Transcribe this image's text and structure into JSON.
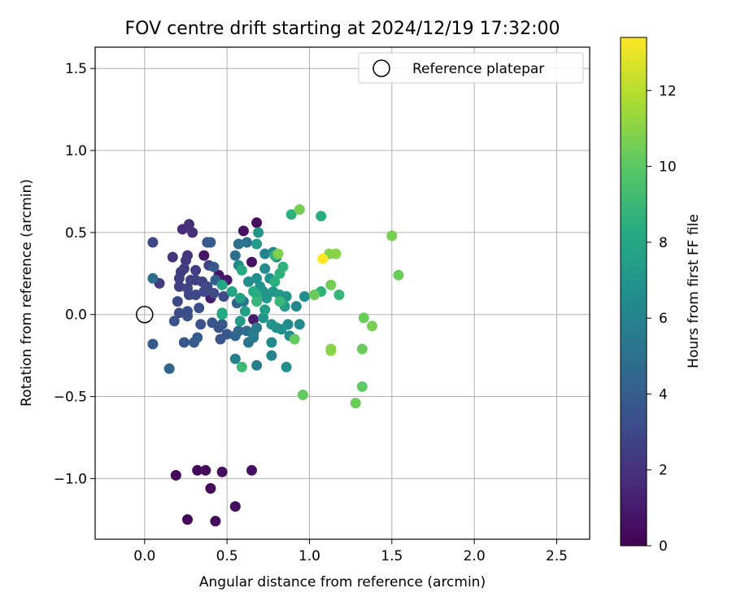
{
  "chart_data": {
    "type": "scatter",
    "title": "FOV centre drift starting at 2024/12/19 17:32:00",
    "xlabel": "Angular distance from reference (arcmin)",
    "ylabel": "Rotation from reference (arcmin)",
    "xlim": [
      -0.3,
      2.7
    ],
    "ylim": [
      -1.37,
      1.63
    ],
    "x_ticks": [
      0.0,
      0.5,
      1.0,
      1.5,
      2.0,
      2.5
    ],
    "x_tick_labels": [
      "0.0",
      "0.5",
      "1.0",
      "1.5",
      "2.0",
      "2.5"
    ],
    "y_ticks": [
      -1.0,
      -0.5,
      0.0,
      0.5,
      1.0,
      1.5
    ],
    "y_tick_labels": [
      "−1.0",
      "−0.5",
      "0.0",
      "0.5",
      "1.0",
      "1.5"
    ],
    "grid": true,
    "colormap": "viridis",
    "colorbar": {
      "label": "Hours from first FF file",
      "range": [
        0,
        13.4
      ],
      "ticks": [
        0,
        2,
        4,
        6,
        8,
        10,
        12
      ],
      "tick_labels": [
        "0",
        "2",
        "4",
        "6",
        "8",
        "10",
        "12"
      ]
    },
    "reference_marker": {
      "x": 0.0,
      "y": 0.0,
      "label": "Reference platepar",
      "style": "hollow-circle"
    },
    "legend": {
      "position": "top-right",
      "entries": [
        "Reference platepar"
      ]
    },
    "points": [
      {
        "x": 0.19,
        "y": -0.98,
        "c": 0.2
      },
      {
        "x": 0.32,
        "y": -0.95,
        "c": 0.3
      },
      {
        "x": 0.37,
        "y": -0.95,
        "c": 0.4
      },
      {
        "x": 0.47,
        "y": -0.96,
        "c": 0.5
      },
      {
        "x": 0.65,
        "y": -0.95,
        "c": 0.6
      },
      {
        "x": 0.4,
        "y": -1.06,
        "c": 0.3
      },
      {
        "x": 0.26,
        "y": -1.25,
        "c": 0.2
      },
      {
        "x": 0.43,
        "y": -1.26,
        "c": 0.3
      },
      {
        "x": 0.55,
        "y": -1.17,
        "c": 0.4
      },
      {
        "x": 0.68,
        "y": 0.56,
        "c": 0.5
      },
      {
        "x": 0.6,
        "y": 0.51,
        "c": 0.6
      },
      {
        "x": 0.65,
        "y": 0.32,
        "c": 0.7
      },
      {
        "x": 0.36,
        "y": 0.36,
        "c": 0.8
      },
      {
        "x": 0.5,
        "y": 0.21,
        "c": 0.9
      },
      {
        "x": 0.45,
        "y": 0.24,
        "c": 0.9
      },
      {
        "x": 0.4,
        "y": 0.1,
        "c": 1.0
      },
      {
        "x": 0.66,
        "y": -0.03,
        "c": 1.0
      },
      {
        "x": 0.23,
        "y": 0.52,
        "c": 1.7
      },
      {
        "x": 0.27,
        "y": 0.55,
        "c": 1.8
      },
      {
        "x": 0.29,
        "y": 0.5,
        "c": 1.9
      },
      {
        "x": 0.26,
        "y": 0.36,
        "c": 2.0
      },
      {
        "x": 0.17,
        "y": 0.35,
        "c": 2.1
      },
      {
        "x": 0.25,
        "y": 0.33,
        "c": 2.2
      },
      {
        "x": 0.22,
        "y": 0.26,
        "c": 2.3
      },
      {
        "x": 0.24,
        "y": 0.28,
        "c": 2.3
      },
      {
        "x": 0.31,
        "y": 0.27,
        "c": 2.4
      },
      {
        "x": 0.09,
        "y": 0.19,
        "c": 2.4
      },
      {
        "x": 0.21,
        "y": 0.22,
        "c": 2.5
      },
      {
        "x": 0.28,
        "y": 0.21,
        "c": 2.5
      },
      {
        "x": 0.31,
        "y": 0.21,
        "c": 2.6
      },
      {
        "x": 0.21,
        "y": 0.17,
        "c": 2.6
      },
      {
        "x": 0.26,
        "y": 0.16,
        "c": 2.7
      },
      {
        "x": 0.35,
        "y": 0.2,
        "c": 2.7
      },
      {
        "x": 0.39,
        "y": 0.3,
        "c": 2.8
      },
      {
        "x": 0.27,
        "y": 0.12,
        "c": 2.8
      },
      {
        "x": 0.31,
        "y": 0.12,
        "c": 2.9
      },
      {
        "x": 0.2,
        "y": 0.08,
        "c": 2.9
      },
      {
        "x": 0.36,
        "y": 0.14,
        "c": 3.0
      },
      {
        "x": 0.38,
        "y": 0.17,
        "c": 3.0
      },
      {
        "x": 0.42,
        "y": 0.13,
        "c": 3.1
      },
      {
        "x": 0.48,
        "y": 0.11,
        "c": 3.1
      },
      {
        "x": 0.21,
        "y": 0.01,
        "c": 3.2
      },
      {
        "x": 0.26,
        "y": 0.02,
        "c": 3.2
      },
      {
        "x": 0.26,
        "y": -0.01,
        "c": 3.3
      },
      {
        "x": 0.33,
        "y": 0.04,
        "c": 3.3
      },
      {
        "x": 0.18,
        "y": -0.04,
        "c": 3.4
      },
      {
        "x": 0.34,
        "y": -0.06,
        "c": 3.4
      },
      {
        "x": 0.41,
        "y": -0.05,
        "c": 3.5
      },
      {
        "x": 0.45,
        "y": -0.08,
        "c": 3.5
      },
      {
        "x": 0.47,
        "y": -0.06,
        "c": 3.6
      },
      {
        "x": 0.46,
        "y": -0.15,
        "c": 3.6
      },
      {
        "x": 0.5,
        "y": -0.12,
        "c": 3.7
      },
      {
        "x": 0.24,
        "y": -0.17,
        "c": 3.7
      },
      {
        "x": 0.3,
        "y": -0.17,
        "c": 3.8
      },
      {
        "x": 0.32,
        "y": -0.14,
        "c": 3.9
      },
      {
        "x": 0.05,
        "y": 0.44,
        "c": 3.0
      },
      {
        "x": 0.38,
        "y": 0.44,
        "c": 3.6
      },
      {
        "x": 0.4,
        "y": 0.44,
        "c": 4.0
      },
      {
        "x": 0.42,
        "y": 0.29,
        "c": 3.7
      },
      {
        "x": 0.05,
        "y": -0.18,
        "c": 3.8
      },
      {
        "x": 0.15,
        "y": -0.33,
        "c": 4.5
      },
      {
        "x": 0.05,
        "y": 0.22,
        "c": 4.8
      },
      {
        "x": 0.43,
        "y": 0.21,
        "c": 4.2
      },
      {
        "x": 0.56,
        "y": 0.07,
        "c": 4.3
      },
      {
        "x": 0.55,
        "y": -0.13,
        "c": 4.4
      },
      {
        "x": 0.57,
        "y": -0.1,
        "c": 4.6
      },
      {
        "x": 0.62,
        "y": -0.1,
        "c": 4.8
      },
      {
        "x": 0.55,
        "y": 0.36,
        "c": 4.9
      },
      {
        "x": 0.57,
        "y": 0.43,
        "c": 5.0
      },
      {
        "x": 0.62,
        "y": 0.44,
        "c": 5.1
      },
      {
        "x": 0.6,
        "y": 0.08,
        "c": 5.2
      },
      {
        "x": 0.63,
        "y": -0.17,
        "c": 5.3
      },
      {
        "x": 0.66,
        "y": -0.14,
        "c": 5.4
      },
      {
        "x": 0.68,
        "y": -0.08,
        "c": 5.5
      },
      {
        "x": 0.66,
        "y": -0.12,
        "c": 5.6
      },
      {
        "x": 0.55,
        "y": -0.27,
        "c": 5.9
      },
      {
        "x": 0.68,
        "y": -0.31,
        "c": 5.7
      },
      {
        "x": 0.77,
        "y": -0.25,
        "c": 6.1
      },
      {
        "x": 0.77,
        "y": -0.17,
        "c": 6.3
      },
      {
        "x": 0.86,
        "y": -0.32,
        "c": 6.6
      },
      {
        "x": 0.88,
        "y": -0.13,
        "c": 6.4
      },
      {
        "x": 0.87,
        "y": -0.06,
        "c": 6.5
      },
      {
        "x": 0.83,
        "y": -0.09,
        "c": 6.7
      },
      {
        "x": 0.77,
        "y": -0.06,
        "c": 6.8
      },
      {
        "x": 0.8,
        "y": -0.08,
        "c": 6.9
      },
      {
        "x": 0.72,
        "y": -0.02,
        "c": 7.0
      },
      {
        "x": 0.69,
        "y": 0.5,
        "c": 7.1
      },
      {
        "x": 0.68,
        "y": 0.43,
        "c": 7.2
      },
      {
        "x": 0.73,
        "y": 0.37,
        "c": 6.1
      },
      {
        "x": 0.78,
        "y": 0.38,
        "c": 6.2
      },
      {
        "x": 0.8,
        "y": 0.35,
        "c": 6.3
      },
      {
        "x": 0.73,
        "y": 0.28,
        "c": 6.4
      },
      {
        "x": 0.57,
        "y": 0.3,
        "c": 6.5
      },
      {
        "x": 0.63,
        "y": 0.2,
        "c": 6.6
      },
      {
        "x": 0.68,
        "y": 0.22,
        "c": 6.7
      },
      {
        "x": 0.7,
        "y": 0.17,
        "c": 6.8
      },
      {
        "x": 0.76,
        "y": 0.22,
        "c": 6.9
      },
      {
        "x": 0.72,
        "y": 0.14,
        "c": 7.0
      },
      {
        "x": 0.74,
        "y": 0.1,
        "c": 7.1
      },
      {
        "x": 0.78,
        "y": 0.14,
        "c": 7.2
      },
      {
        "x": 0.82,
        "y": 0.12,
        "c": 7.3
      },
      {
        "x": 0.85,
        "y": 0.05,
        "c": 7.4
      },
      {
        "x": 0.73,
        "y": 0.03,
        "c": 7.5
      },
      {
        "x": 0.61,
        "y": 0.02,
        "c": 7.6
      },
      {
        "x": 0.58,
        "y": 0.1,
        "c": 7.7
      },
      {
        "x": 0.53,
        "y": 0.14,
        "c": 7.8
      },
      {
        "x": 0.47,
        "y": 0.18,
        "c": 7.9
      },
      {
        "x": 0.92,
        "y": 0.05,
        "c": 6.2
      },
      {
        "x": 0.94,
        "y": -0.06,
        "c": 6.4
      },
      {
        "x": 0.97,
        "y": 0.11,
        "c": 6.6
      },
      {
        "x": 0.86,
        "y": 0.11,
        "c": 7.0
      },
      {
        "x": 0.58,
        "y": -0.04,
        "c": 7.4
      },
      {
        "x": 0.47,
        "y": 0.0,
        "c": 7.8
      },
      {
        "x": 0.47,
        "y": 0.01,
        "c": 8.0
      },
      {
        "x": 0.59,
        "y": 0.27,
        "c": 8.2
      },
      {
        "x": 0.66,
        "y": 0.14,
        "c": 8.3
      },
      {
        "x": 0.68,
        "y": 0.12,
        "c": 8.4
      },
      {
        "x": 0.79,
        "y": 0.2,
        "c": 8.5
      },
      {
        "x": 0.82,
        "y": 0.25,
        "c": 8.6
      },
      {
        "x": 0.84,
        "y": 0.29,
        "c": 8.7
      },
      {
        "x": 0.79,
        "y": 0.36,
        "c": 8.8
      },
      {
        "x": 0.68,
        "y": 0.08,
        "c": 8.9
      },
      {
        "x": 0.82,
        "y": 0.08,
        "c": 9.0
      },
      {
        "x": 0.59,
        "y": -0.32,
        "c": 9.1
      },
      {
        "x": 0.89,
        "y": 0.61,
        "c": 8.6
      },
      {
        "x": 1.07,
        "y": 0.6,
        "c": 8.4
      },
      {
        "x": 1.07,
        "y": 0.14,
        "c": 8.6
      },
      {
        "x": 1.18,
        "y": 0.12,
        "c": 8.9
      },
      {
        "x": 0.91,
        "y": -0.15,
        "c": 10.2
      },
      {
        "x": 1.03,
        "y": 0.12,
        "c": 10.4
      },
      {
        "x": 1.13,
        "y": 0.18,
        "c": 10.5
      },
      {
        "x": 0.94,
        "y": 0.64,
        "c": 10.6
      },
      {
        "x": 0.81,
        "y": 0.37,
        "c": 10.8
      },
      {
        "x": 1.12,
        "y": 0.37,
        "c": 10.9
      },
      {
        "x": 1.16,
        "y": 0.37,
        "c": 11.0
      },
      {
        "x": 1.5,
        "y": 0.48,
        "c": 10.6
      },
      {
        "x": 1.54,
        "y": 0.24,
        "c": 10.4
      },
      {
        "x": 0.96,
        "y": -0.49,
        "c": 10.2
      },
      {
        "x": 1.28,
        "y": -0.54,
        "c": 10.4
      },
      {
        "x": 1.32,
        "y": -0.44,
        "c": 10.1
      },
      {
        "x": 1.32,
        "y": -0.21,
        "c": 10.3
      },
      {
        "x": 1.13,
        "y": -0.22,
        "c": 11.1
      },
      {
        "x": 1.13,
        "y": -0.21,
        "c": 11.0
      },
      {
        "x": 1.33,
        "y": -0.02,
        "c": 10.4
      },
      {
        "x": 1.38,
        "y": -0.07,
        "c": 10.6
      },
      {
        "x": 1.08,
        "y": 0.34,
        "c": 13.4
      }
    ]
  }
}
